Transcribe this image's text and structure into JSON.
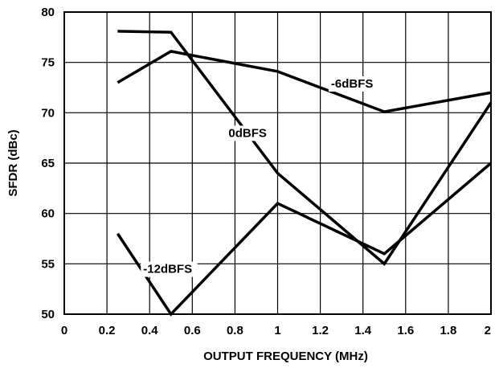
{
  "chart_data": {
    "type": "line",
    "xlabel": "OUTPUT FREQUENCY (MHz)",
    "ylabel": "SFDR (dBc)",
    "xlim": [
      0,
      2
    ],
    "ylim": [
      50,
      80
    ],
    "x_ticks": [
      "0",
      "0.2",
      "0.4",
      "0.6",
      "0.8",
      "1",
      "1.2",
      "1.4",
      "1.6",
      "1.8",
      "2"
    ],
    "y_ticks": [
      "50",
      "55",
      "60",
      "65",
      "70",
      "75",
      "80"
    ],
    "grid": true,
    "series": [
      {
        "name": "0dBFS",
        "x": [
          0.25,
          0.5,
          1.0,
          1.5,
          2.0
        ],
        "y": [
          78.1,
          78.0,
          64.0,
          55.0,
          71.0
        ]
      },
      {
        "name": "-6dBFS",
        "x": [
          0.25,
          0.5,
          1.0,
          1.5,
          2.0
        ],
        "y": [
          73.0,
          76.1,
          74.1,
          70.1,
          72.0
        ]
      },
      {
        "name": "-12dBFS",
        "x": [
          0.25,
          0.5,
          1.0,
          1.5,
          2.0
        ],
        "y": [
          58.0,
          50.0,
          61.0,
          56.0,
          65.0
        ]
      }
    ]
  }
}
